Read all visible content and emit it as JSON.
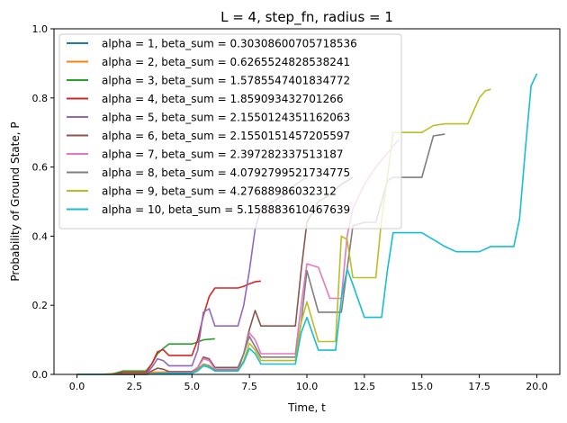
{
  "chart_data": {
    "type": "line",
    "title": "L = 4, step_fn, radius = 1",
    "xlabel": "Time, t",
    "ylabel": "Probability of Ground State, P",
    "xlim": [
      -1.0,
      21.0
    ],
    "ylim": [
      0.0,
      1.0
    ],
    "xticks": [
      "0.0",
      "2.5",
      "5.0",
      "7.5",
      "10.0",
      "12.5",
      "15.0",
      "17.5",
      "20.0"
    ],
    "yticks": [
      "0.0",
      "0.2",
      "0.4",
      "0.6",
      "0.8",
      "1.0"
    ],
    "grid": false,
    "legend": "upper-left",
    "series": [
      {
        "name": "alpha = 1, beta_sum = 0.30308600705718536",
        "color": "#1f77b4",
        "x": [
          0,
          1,
          2
        ],
        "y": [
          0.0,
          0.0,
          0.0
        ]
      },
      {
        "name": "alpha = 2, beta_sum = 0.6265524828538241",
        "color": "#ff7f0e",
        "x": [
          0,
          1,
          1.5,
          2,
          2.5,
          3,
          3.5,
          4
        ],
        "y": [
          0.0,
          0.0,
          0.002,
          0.006,
          0.006,
          0.006,
          0.006,
          0.007
        ]
      },
      {
        "name": "alpha = 3, beta_sum = 1.5785547401834772",
        "color": "#2ca02c",
        "x": [
          0,
          1.5,
          2,
          2.5,
          3,
          3.25,
          3.5,
          3.75,
          4,
          4.5,
          5,
          5.5,
          6
        ],
        "y": [
          0.0,
          0.0,
          0.01,
          0.01,
          0.01,
          0.03,
          0.06,
          0.075,
          0.088,
          0.088,
          0.088,
          0.1,
          0.103
        ]
      },
      {
        "name": "alpha = 4, beta_sum = 1.859093432701266",
        "color": "#d62728",
        "x": [
          0,
          1.5,
          2,
          2.5,
          3,
          3.25,
          3.5,
          3.75,
          4,
          4.5,
          5,
          5.25,
          5.5,
          5.75,
          6,
          6.5,
          7,
          7.25,
          7.5,
          7.75,
          8
        ],
        "y": [
          0.0,
          0.0,
          0.005,
          0.005,
          0.005,
          0.03,
          0.065,
          0.072,
          0.055,
          0.055,
          0.055,
          0.1,
          0.17,
          0.225,
          0.25,
          0.25,
          0.25,
          0.255,
          0.262,
          0.268,
          0.27
        ]
      },
      {
        "name": "alpha = 5, beta_sum = 2.1550124351162063",
        "color": "#9467bd",
        "x": [
          0,
          2,
          2.5,
          3,
          3.25,
          3.5,
          3.75,
          4,
          4.5,
          5,
          5.25,
          5.5,
          5.75,
          6,
          6.5,
          7,
          7.25,
          7.5,
          7.75,
          8,
          8.5,
          9,
          9.5,
          10
        ],
        "y": [
          0.0,
          0.0,
          0.0,
          0.0,
          0.02,
          0.045,
          0.04,
          0.025,
          0.025,
          0.025,
          0.07,
          0.18,
          0.19,
          0.14,
          0.14,
          0.14,
          0.2,
          0.3,
          0.42,
          0.48,
          0.5,
          0.52,
          0.55,
          0.57
        ]
      },
      {
        "name": "alpha = 6, beta_sum = 2.1550151457205597",
        "color": "#8c564b",
        "x": [
          0,
          2.5,
          3,
          3.25,
          3.5,
          3.75,
          4,
          4.5,
          5,
          5.25,
          5.5,
          5.75,
          6,
          6.5,
          7,
          7.25,
          7.5,
          7.75,
          8,
          8.5,
          9,
          9.5,
          9.75,
          10,
          10.5,
          11,
          11.5,
          12
        ],
        "y": [
          0.0,
          0.0,
          0.0,
          0.01,
          0.018,
          0.015,
          0.008,
          0.008,
          0.008,
          0.02,
          0.05,
          0.045,
          0.02,
          0.02,
          0.02,
          0.06,
          0.13,
          0.185,
          0.14,
          0.14,
          0.14,
          0.14,
          0.3,
          0.44,
          0.5,
          0.52,
          0.55,
          0.57
        ]
      },
      {
        "name": "alpha = 7, beta_sum = 2.397282337513187",
        "color": "#e377c2",
        "x": [
          0,
          3,
          3.5,
          4,
          4.5,
          5,
          5.25,
          5.5,
          5.75,
          6,
          6.5,
          7,
          7.25,
          7.5,
          7.75,
          8,
          8.5,
          9,
          9.5,
          9.75,
          10,
          10.5,
          11,
          11.25,
          11.5,
          11.75,
          12,
          12.5,
          13,
          13.5,
          14
        ],
        "y": [
          0.0,
          0.0,
          0.003,
          0.005,
          0.005,
          0.005,
          0.02,
          0.045,
          0.04,
          0.015,
          0.015,
          0.015,
          0.06,
          0.12,
          0.1,
          0.06,
          0.06,
          0.06,
          0.06,
          0.2,
          0.32,
          0.31,
          0.22,
          0.22,
          0.22,
          0.4,
          0.48,
          0.55,
          0.6,
          0.64,
          0.68
        ]
      },
      {
        "name": "alpha = 8, beta_sum = 4.0792799521734775",
        "color": "#7f7f7f",
        "x": [
          0,
          3,
          3.5,
          4,
          4.5,
          5,
          5.25,
          5.5,
          5.75,
          6,
          6.5,
          7,
          7.25,
          7.5,
          7.75,
          8,
          8.5,
          9,
          9.5,
          9.75,
          10,
          10.5,
          11,
          11.5,
          12,
          12.5,
          13,
          13.25,
          13.5,
          13.75,
          14,
          14.5,
          15,
          15.5,
          16
        ],
        "y": [
          0.0,
          0.0,
          0.002,
          0.004,
          0.004,
          0.004,
          0.015,
          0.03,
          0.025,
          0.012,
          0.012,
          0.012,
          0.06,
          0.11,
          0.08,
          0.05,
          0.05,
          0.05,
          0.05,
          0.15,
          0.3,
          0.18,
          0.18,
          0.18,
          0.43,
          0.44,
          0.44,
          0.5,
          0.56,
          0.57,
          0.57,
          0.57,
          0.57,
          0.69,
          0.695
        ]
      },
      {
        "name": "alpha = 9, beta_sum = 4.27688986032312",
        "color": "#bcbd22",
        "x": [
          0,
          3,
          3.5,
          4,
          4.5,
          5,
          5.25,
          5.5,
          5.75,
          6,
          6.5,
          7,
          7.25,
          7.5,
          7.75,
          8,
          8.5,
          9,
          9.5,
          9.75,
          10,
          10.5,
          11,
          11.25,
          11.5,
          11.75,
          12,
          12.5,
          13,
          13.25,
          13.5,
          13.75,
          14,
          14.5,
          15,
          15.5,
          16,
          16.5,
          17,
          17.5,
          17.75,
          18
        ],
        "y": [
          0.0,
          0.0,
          0.002,
          0.003,
          0.003,
          0.003,
          0.012,
          0.028,
          0.022,
          0.01,
          0.01,
          0.01,
          0.04,
          0.09,
          0.07,
          0.04,
          0.04,
          0.04,
          0.04,
          0.15,
          0.21,
          0.095,
          0.095,
          0.095,
          0.4,
          0.39,
          0.28,
          0.28,
          0.28,
          0.45,
          0.57,
          0.7,
          0.7,
          0.7,
          0.7,
          0.72,
          0.725,
          0.725,
          0.725,
          0.8,
          0.82,
          0.825
        ]
      },
      {
        "name": "alpha = 10, beta_sum = 5.158883610467639",
        "color": "#17becf",
        "x": [
          0,
          3,
          3.5,
          4,
          4.5,
          5,
          5.25,
          5.5,
          5.75,
          6,
          6.5,
          7,
          7.25,
          7.5,
          7.75,
          8,
          8.5,
          9,
          9.5,
          9.75,
          10,
          10.5,
          11,
          11.25,
          11.5,
          11.75,
          12,
          12.5,
          13,
          13.25,
          13.5,
          13.75,
          14,
          14.5,
          15,
          15.5,
          16,
          16.5,
          17,
          17.5,
          18,
          18.5,
          19,
          19.25,
          19.5,
          19.75,
          20
        ],
        "y": [
          0.0,
          0.0,
          0.002,
          0.003,
          0.003,
          0.003,
          0.01,
          0.025,
          0.02,
          0.01,
          0.01,
          0.01,
          0.035,
          0.075,
          0.06,
          0.03,
          0.03,
          0.03,
          0.03,
          0.12,
          0.165,
          0.07,
          0.07,
          0.07,
          0.22,
          0.305,
          0.26,
          0.165,
          0.165,
          0.165,
          0.3,
          0.41,
          0.41,
          0.41,
          0.41,
          0.39,
          0.37,
          0.355,
          0.355,
          0.355,
          0.37,
          0.37,
          0.37,
          0.45,
          0.65,
          0.835,
          0.87
        ]
      }
    ]
  }
}
